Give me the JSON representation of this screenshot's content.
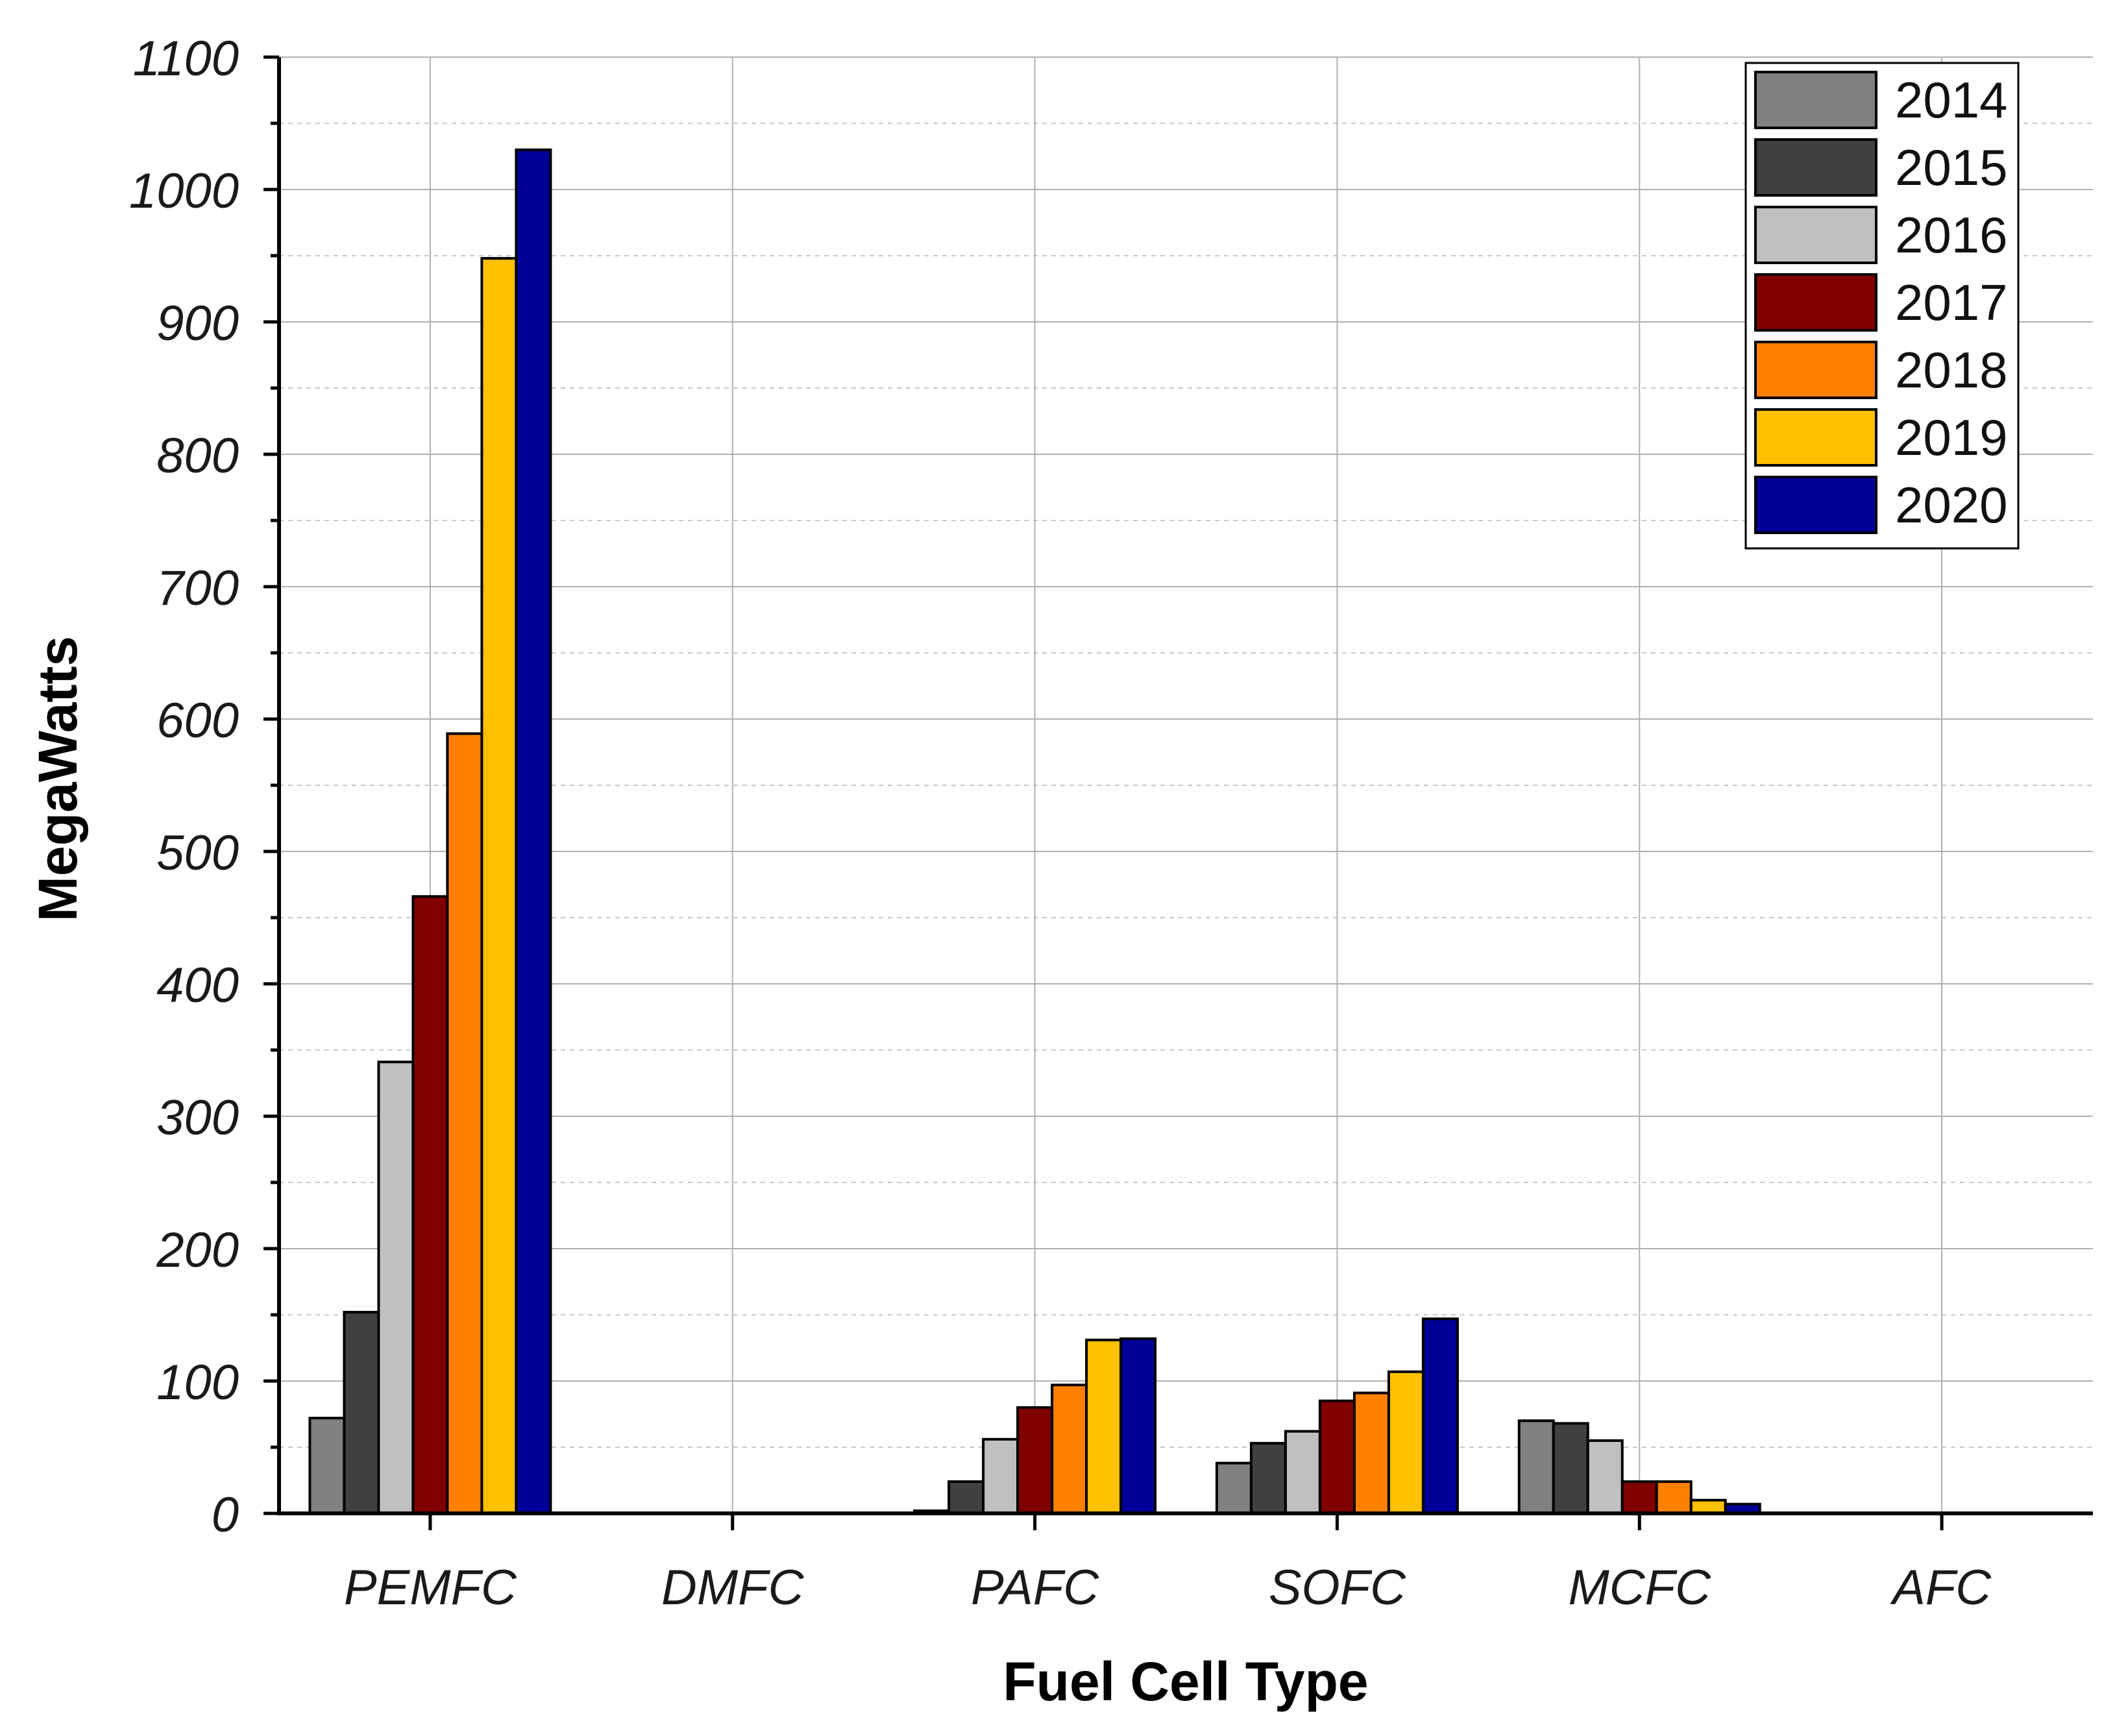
{
  "chart_data": {
    "type": "bar",
    "title": "",
    "xlabel": "Fuel Cell Type",
    "ylabel": "MegaWatts",
    "ylim": [
      0,
      1100
    ],
    "yticks": [
      0,
      100,
      200,
      300,
      400,
      500,
      600,
      700,
      800,
      900,
      1000,
      1100
    ],
    "grid": true,
    "legend_position": "top-right",
    "categories": [
      "PEMFC",
      "DMFC",
      "PAFC",
      "SOFC",
      "MCFC",
      "AFC"
    ],
    "series": [
      {
        "name": "2014",
        "color": "#808080",
        "values": [
          72,
          0,
          2,
          38,
          70,
          0
        ]
      },
      {
        "name": "2015",
        "color": "#404040",
        "values": [
          152,
          0,
          24,
          53,
          68,
          0
        ]
      },
      {
        "name": "2016",
        "color": "#c0c0c0",
        "values": [
          341,
          0,
          56,
          62,
          55,
          0
        ]
      },
      {
        "name": "2017",
        "color": "#800000",
        "values": [
          466,
          0,
          80,
          85,
          24,
          0
        ]
      },
      {
        "name": "2018",
        "color": "#ff8000",
        "values": [
          589,
          0,
          97,
          91,
          24,
          0
        ]
      },
      {
        "name": "2019",
        "color": "#ffc000",
        "values": [
          948,
          0,
          131,
          107,
          10,
          0
        ]
      },
      {
        "name": "2020",
        "color": "#000099",
        "values": [
          1030,
          0,
          132,
          147,
          7,
          0
        ]
      }
    ]
  }
}
